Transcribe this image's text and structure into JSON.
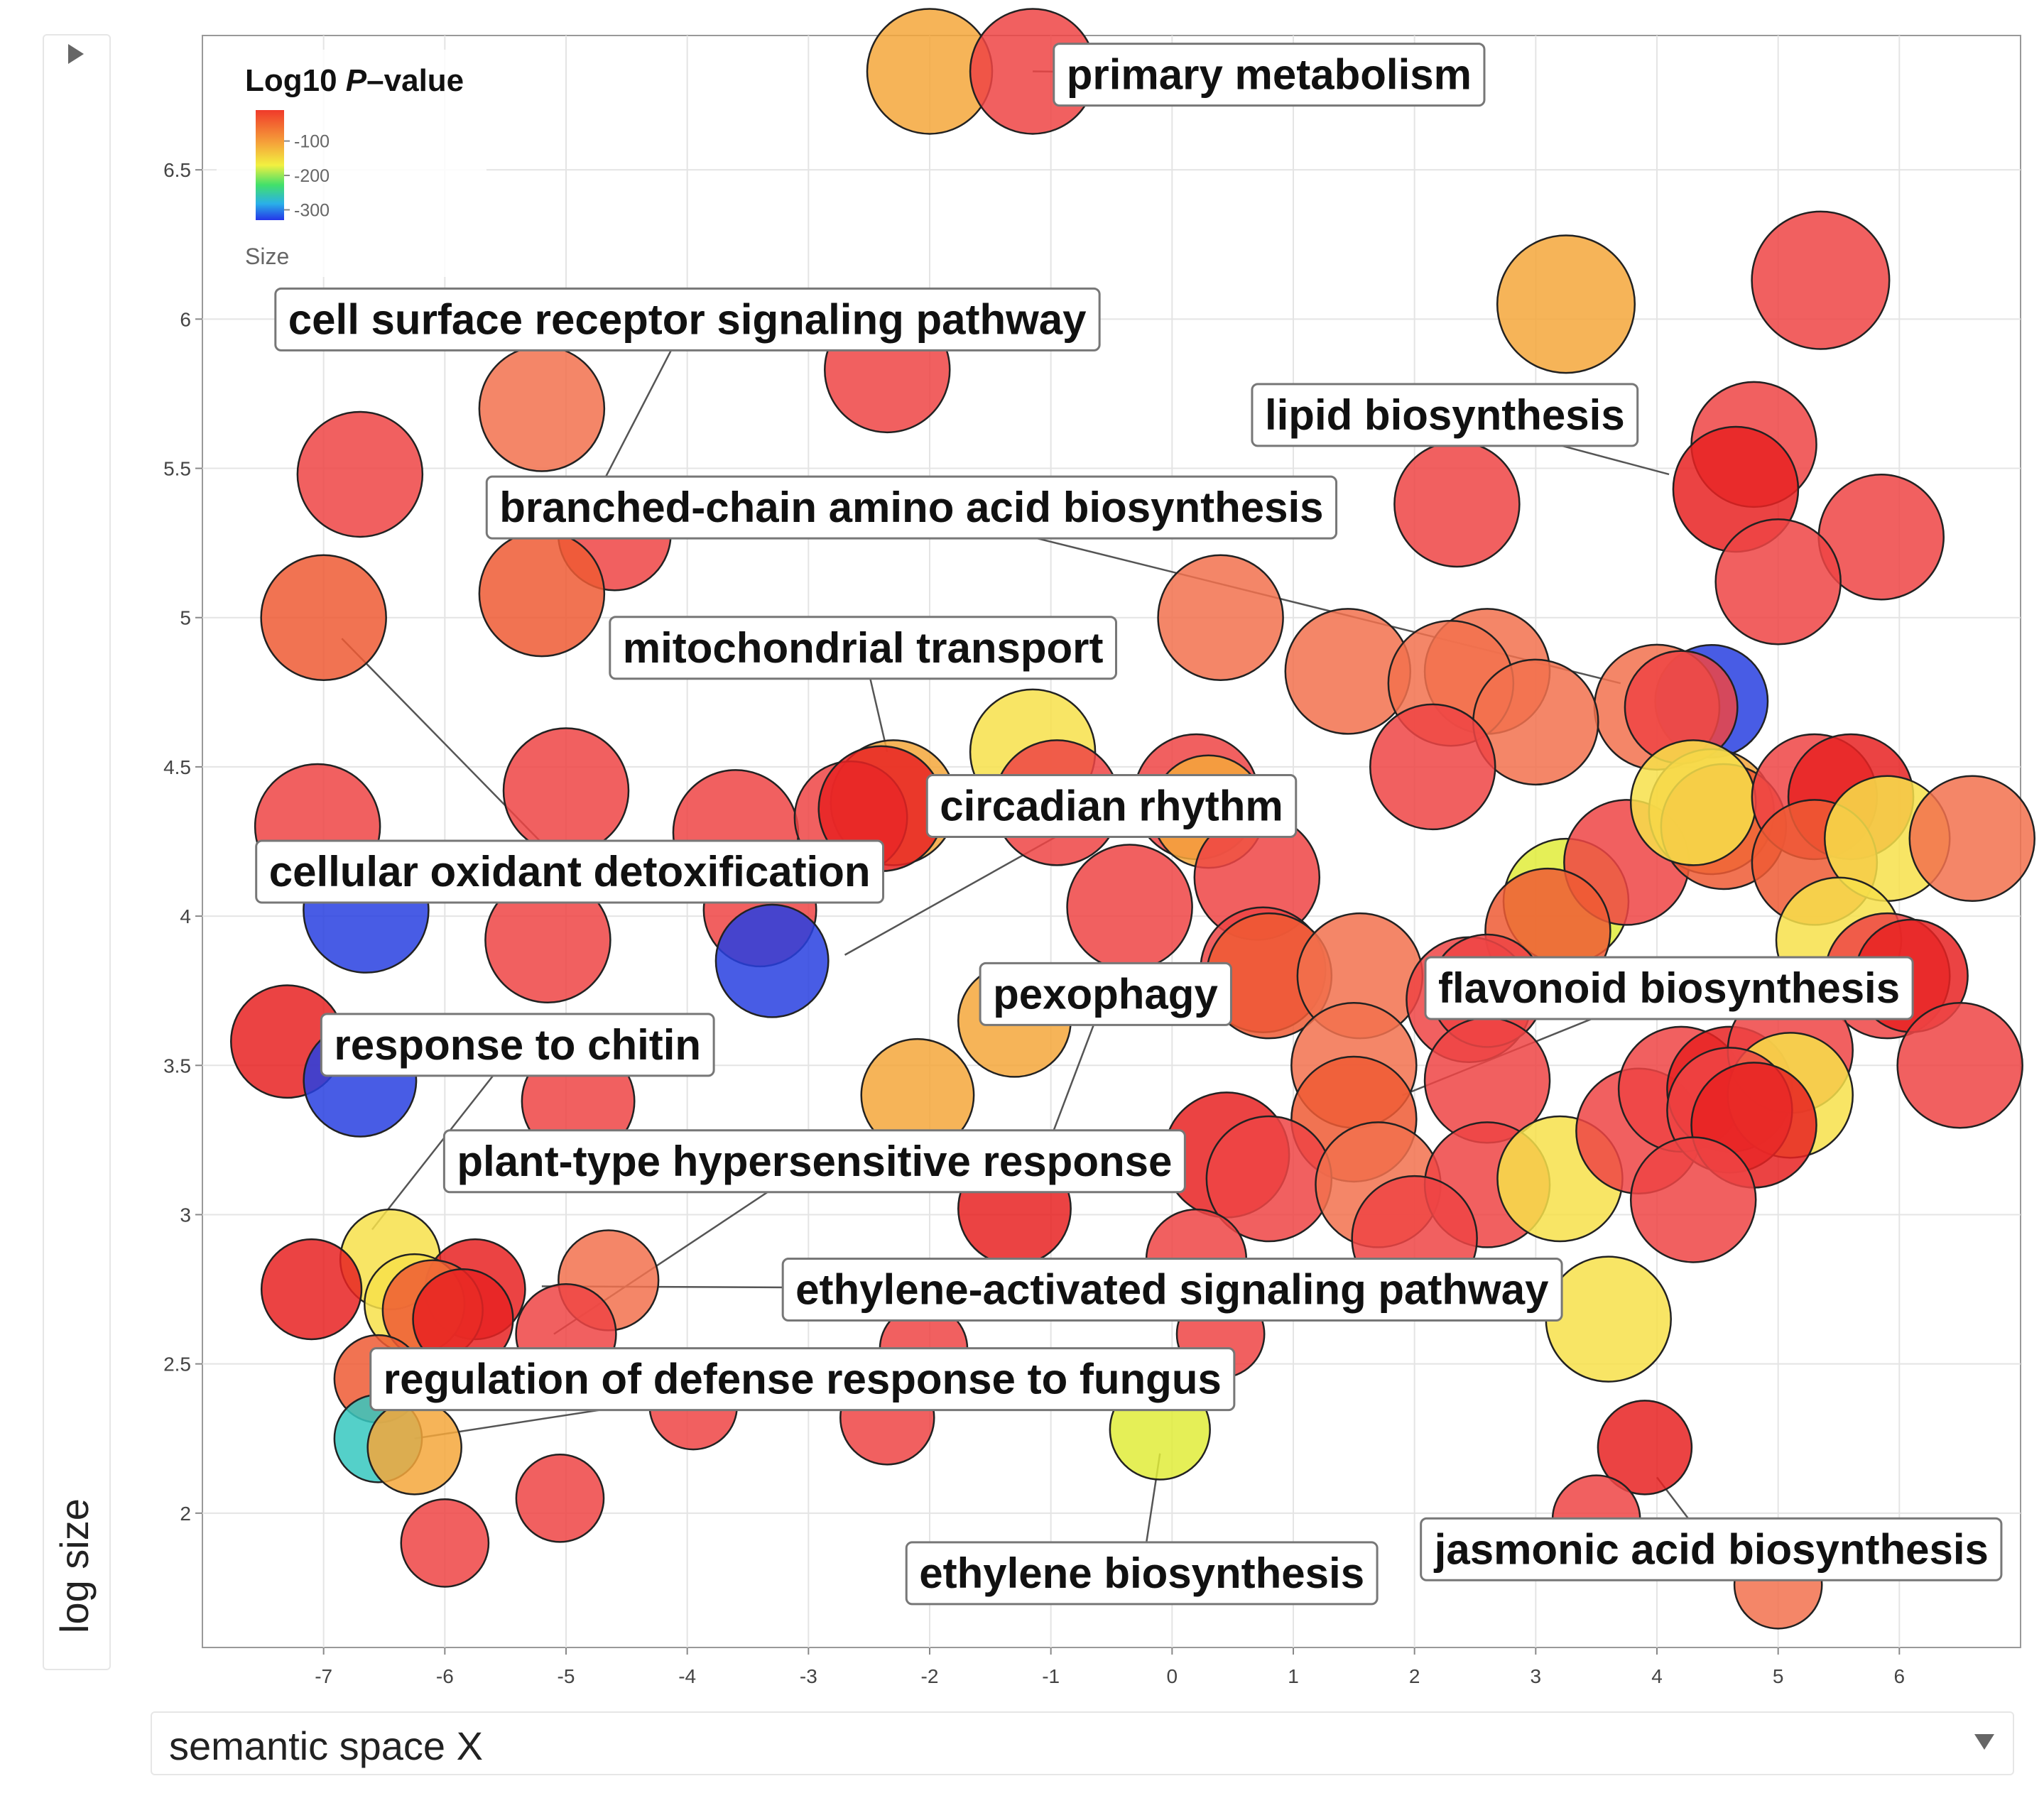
{
  "chart_data": {
    "type": "scatter",
    "title": "",
    "xlabel": "semantic space X",
    "ylabel": "log size",
    "xlim": [
      -8.0,
      7.0
    ],
    "ylim": [
      1.55,
      6.95
    ],
    "x_ticks": [
      -7,
      -6,
      -5,
      -4,
      -3,
      -2,
      -1,
      0,
      1,
      2,
      3,
      4,
      5,
      6
    ],
    "y_ticks": [
      2,
      2.5,
      3,
      3.5,
      4,
      4.5,
      5,
      5.5,
      6,
      6.5
    ],
    "x_tick_labels": [
      "-7",
      "-6",
      "-5",
      "-4",
      "-3",
      "-2",
      "-1",
      "0",
      "1",
      "2",
      "3",
      "4",
      "5",
      "6"
    ],
    "y_tick_labels": [
      "2",
      "2.5",
      "3",
      "3.5",
      "4",
      "4.5",
      "5",
      "5.5",
      "6",
      "6.5"
    ],
    "grid": true,
    "legend": {
      "title_prefix": "Log10 ",
      "title_italic": "P",
      "title_suffix": "–value",
      "ticks": [
        "-100",
        "-200",
        "-300"
      ],
      "tick_values": [
        -100,
        -200,
        -300
      ],
      "range": [
        -10,
        -330
      ],
      "size_label": "Size",
      "position": "top-left"
    },
    "colors": {
      "red": "#ee4444",
      "deep_red": "#e82222",
      "orange_red": "#ef5a34",
      "coral": "#f2714e",
      "orange": "#f5a73b",
      "yellow": "#f7e04a",
      "yellow_green": "#e0ec3a",
      "blue": "#2840e0",
      "teal": "#36c8c0"
    },
    "points": [
      {
        "x": -2.0,
        "y": 6.83,
        "size": 1.0,
        "color": "orange"
      },
      {
        "x": -1.15,
        "y": 6.83,
        "size": 1.0,
        "color": "red"
      },
      {
        "x": 3.25,
        "y": 6.05,
        "size": 1.1,
        "color": "orange"
      },
      {
        "x": 5.35,
        "y": 6.13,
        "size": 1.1,
        "color": "red"
      },
      {
        "x": -2.35,
        "y": 5.83,
        "size": 1.0,
        "color": "red"
      },
      {
        "x": -5.2,
        "y": 5.7,
        "size": 1.0,
        "color": "coral"
      },
      {
        "x": -6.7,
        "y": 5.48,
        "size": 1.0,
        "color": "red"
      },
      {
        "x": -4.6,
        "y": 5.28,
        "size": 0.9,
        "color": "red"
      },
      {
        "x": -5.2,
        "y": 5.08,
        "size": 1.0,
        "color": "orange_red"
      },
      {
        "x": -7.0,
        "y": 5.0,
        "size": 1.0,
        "color": "orange_red"
      },
      {
        "x": 2.35,
        "y": 5.38,
        "size": 1.0,
        "color": "red"
      },
      {
        "x": 4.8,
        "y": 5.58,
        "size": 1.0,
        "color": "red"
      },
      {
        "x": 4.65,
        "y": 5.43,
        "size": 1.0,
        "color": "deep_red"
      },
      {
        "x": 5.85,
        "y": 5.27,
        "size": 1.0,
        "color": "red"
      },
      {
        "x": 5.0,
        "y": 5.12,
        "size": 1.0,
        "color": "red"
      },
      {
        "x": 0.4,
        "y": 5.0,
        "size": 1.0,
        "color": "coral"
      },
      {
        "x": 1.45,
        "y": 4.82,
        "size": 1.0,
        "color": "coral"
      },
      {
        "x": 2.6,
        "y": 4.82,
        "size": 1.0,
        "color": "coral"
      },
      {
        "x": 2.3,
        "y": 4.78,
        "size": 1.0,
        "color": "coral"
      },
      {
        "x": 4.45,
        "y": 4.72,
        "size": 0.9,
        "color": "blue"
      },
      {
        "x": 4.0,
        "y": 4.7,
        "size": 1.0,
        "color": "coral"
      },
      {
        "x": 4.2,
        "y": 4.7,
        "size": 0.9,
        "color": "red"
      },
      {
        "x": 3.0,
        "y": 4.65,
        "size": 1.0,
        "color": "coral"
      },
      {
        "x": 2.15,
        "y": 4.5,
        "size": 1.0,
        "color": "red"
      },
      {
        "x": -1.15,
        "y": 4.55,
        "size": 1.0,
        "color": "yellow"
      },
      {
        "x": -5.0,
        "y": 4.42,
        "size": 1.0,
        "color": "red"
      },
      {
        "x": -7.05,
        "y": 4.3,
        "size": 1.0,
        "color": "red"
      },
      {
        "x": -3.6,
        "y": 4.28,
        "size": 1.0,
        "color": "red"
      },
      {
        "x": -2.3,
        "y": 4.38,
        "size": 1.0,
        "color": "orange"
      },
      {
        "x": -2.65,
        "y": 4.33,
        "size": 0.9,
        "color": "red"
      },
      {
        "x": -2.4,
        "y": 4.36,
        "size": 1.0,
        "color": "deep_red"
      },
      {
        "x": -0.95,
        "y": 4.38,
        "size": 1.0,
        "color": "red"
      },
      {
        "x": 0.2,
        "y": 4.4,
        "size": 1.0,
        "color": "red"
      },
      {
        "x": 0.3,
        "y": 4.35,
        "size": 0.9,
        "color": "orange"
      },
      {
        "x": 0.7,
        "y": 4.13,
        "size": 1.0,
        "color": "red"
      },
      {
        "x": -0.35,
        "y": 4.03,
        "size": 1.0,
        "color": "red"
      },
      {
        "x": -6.65,
        "y": 4.02,
        "size": 1.0,
        "color": "blue"
      },
      {
        "x": -5.15,
        "y": 3.92,
        "size": 1.0,
        "color": "red"
      },
      {
        "x": -3.4,
        "y": 4.02,
        "size": 0.9,
        "color": "red"
      },
      {
        "x": -3.3,
        "y": 3.85,
        "size": 0.9,
        "color": "blue"
      },
      {
        "x": 3.25,
        "y": 4.05,
        "size": 1.0,
        "color": "yellow_green"
      },
      {
        "x": 3.75,
        "y": 4.18,
        "size": 1.0,
        "color": "red"
      },
      {
        "x": 3.1,
        "y": 3.95,
        "size": 1.0,
        "color": "orange_red"
      },
      {
        "x": 4.45,
        "y": 4.35,
        "size": 1.0,
        "color": "orange"
      },
      {
        "x": 4.55,
        "y": 4.3,
        "size": 1.0,
        "color": "orange_red"
      },
      {
        "x": 4.3,
        "y": 4.38,
        "size": 1.0,
        "color": "yellow"
      },
      {
        "x": 5.3,
        "y": 4.4,
        "size": 1.0,
        "color": "red"
      },
      {
        "x": 5.6,
        "y": 4.4,
        "size": 1.0,
        "color": "deep_red"
      },
      {
        "x": 5.3,
        "y": 4.18,
        "size": 1.0,
        "color": "orange_red"
      },
      {
        "x": 5.9,
        "y": 4.26,
        "size": 1.0,
        "color": "yellow"
      },
      {
        "x": 6.6,
        "y": 4.26,
        "size": 1.0,
        "color": "coral"
      },
      {
        "x": 5.5,
        "y": 3.92,
        "size": 1.0,
        "color": "yellow"
      },
      {
        "x": 5.9,
        "y": 3.8,
        "size": 1.0,
        "color": "red"
      },
      {
        "x": 6.1,
        "y": 3.8,
        "size": 0.9,
        "color": "deep_red"
      },
      {
        "x": 6.5,
        "y": 3.5,
        "size": 1.0,
        "color": "red"
      },
      {
        "x": 0.75,
        "y": 3.82,
        "size": 1.0,
        "color": "red"
      },
      {
        "x": 0.8,
        "y": 3.8,
        "size": 1.0,
        "color": "orange_red"
      },
      {
        "x": 1.55,
        "y": 3.8,
        "size": 1.0,
        "color": "coral"
      },
      {
        "x": 2.45,
        "y": 3.72,
        "size": 1.0,
        "color": "red"
      },
      {
        "x": 2.6,
        "y": 3.75,
        "size": 0.9,
        "color": "red"
      },
      {
        "x": 1.5,
        "y": 3.5,
        "size": 1.0,
        "color": "coral"
      },
      {
        "x": 2.6,
        "y": 3.45,
        "size": 1.0,
        "color": "red"
      },
      {
        "x": 1.5,
        "y": 3.32,
        "size": 1.0,
        "color": "orange_red"
      },
      {
        "x": 0.45,
        "y": 3.2,
        "size": 1.0,
        "color": "deep_red"
      },
      {
        "x": 0.8,
        "y": 3.12,
        "size": 1.0,
        "color": "red"
      },
      {
        "x": 1.7,
        "y": 3.1,
        "size": 1.0,
        "color": "coral"
      },
      {
        "x": 2.6,
        "y": 3.1,
        "size": 1.0,
        "color": "red"
      },
      {
        "x": 3.2,
        "y": 3.12,
        "size": 1.0,
        "color": "yellow"
      },
      {
        "x": 3.85,
        "y": 3.28,
        "size": 1.0,
        "color": "red"
      },
      {
        "x": 4.2,
        "y": 3.42,
        "size": 1.0,
        "color": "red"
      },
      {
        "x": 4.6,
        "y": 3.42,
        "size": 1.0,
        "color": "deep_red"
      },
      {
        "x": 5.1,
        "y": 3.55,
        "size": 1.0,
        "color": "red"
      },
      {
        "x": 5.1,
        "y": 3.4,
        "size": 1.0,
        "color": "yellow"
      },
      {
        "x": 4.6,
        "y": 3.35,
        "size": 1.0,
        "color": "red"
      },
      {
        "x": 4.8,
        "y": 3.3,
        "size": 1.0,
        "color": "deep_red"
      },
      {
        "x": 4.3,
        "y": 3.05,
        "size": 1.0,
        "color": "red"
      },
      {
        "x": 2.0,
        "y": 2.92,
        "size": 1.0,
        "color": "red"
      },
      {
        "x": 3.6,
        "y": 2.65,
        "size": 1.0,
        "color": "yellow"
      },
      {
        "x": 0.2,
        "y": 2.85,
        "size": 0.8,
        "color": "red"
      },
      {
        "x": -1.3,
        "y": 3.65,
        "size": 0.9,
        "color": "orange"
      },
      {
        "x": -2.1,
        "y": 3.4,
        "size": 0.9,
        "color": "orange"
      },
      {
        "x": -1.3,
        "y": 3.02,
        "size": 0.9,
        "color": "deep_red"
      },
      {
        "x": -4.9,
        "y": 3.38,
        "size": 0.9,
        "color": "red"
      },
      {
        "x": -7.3,
        "y": 3.58,
        "size": 0.9,
        "color": "deep_red"
      },
      {
        "x": -6.7,
        "y": 3.45,
        "size": 0.9,
        "color": "blue"
      },
      {
        "x": -6.45,
        "y": 2.85,
        "size": 0.8,
        "color": "yellow"
      },
      {
        "x": -5.75,
        "y": 2.75,
        "size": 0.8,
        "color": "deep_red"
      },
      {
        "x": -7.1,
        "y": 2.75,
        "size": 0.8,
        "color": "deep_red"
      },
      {
        "x": -6.25,
        "y": 2.7,
        "size": 0.8,
        "color": "yellow"
      },
      {
        "x": -6.1,
        "y": 2.68,
        "size": 0.8,
        "color": "orange_red"
      },
      {
        "x": -5.85,
        "y": 2.65,
        "size": 0.8,
        "color": "deep_red"
      },
      {
        "x": -4.65,
        "y": 2.78,
        "size": 0.8,
        "color": "coral"
      },
      {
        "x": -5.0,
        "y": 2.6,
        "size": 0.8,
        "color": "red"
      },
      {
        "x": -6.55,
        "y": 2.45,
        "size": 0.7,
        "color": "orange_red"
      },
      {
        "x": -6.55,
        "y": 2.25,
        "size": 0.7,
        "color": "teal"
      },
      {
        "x": -6.25,
        "y": 2.22,
        "size": 0.75,
        "color": "orange"
      },
      {
        "x": -3.95,
        "y": 2.36,
        "size": 0.7,
        "color": "red"
      },
      {
        "x": -2.35,
        "y": 2.32,
        "size": 0.75,
        "color": "red"
      },
      {
        "x": -2.05,
        "y": 2.55,
        "size": 0.7,
        "color": "red"
      },
      {
        "x": -0.1,
        "y": 2.28,
        "size": 0.8,
        "color": "yellow_green"
      },
      {
        "x": 0.4,
        "y": 2.6,
        "size": 0.7,
        "color": "red"
      },
      {
        "x": -5.05,
        "y": 2.05,
        "size": 0.7,
        "color": "red"
      },
      {
        "x": -6.0,
        "y": 1.9,
        "size": 0.7,
        "color": "red"
      },
      {
        "x": 3.9,
        "y": 2.22,
        "size": 0.75,
        "color": "deep_red"
      },
      {
        "x": 3.5,
        "y": 1.98,
        "size": 0.7,
        "color": "red"
      },
      {
        "x": 5.0,
        "y": 1.76,
        "size": 0.7,
        "color": "coral"
      }
    ],
    "labels": [
      {
        "text": "primary metabolism",
        "x": 0.8,
        "y": 6.82,
        "anchor_x": -1.15,
        "anchor_y": 6.83
      },
      {
        "text": "cell surface receptor signaling pathway",
        "x": -4.0,
        "y": 6.0,
        "anchor_x": -4.7,
        "anchor_y": 5.45
      },
      {
        "text": "lipid biosynthesis",
        "x": 2.25,
        "y": 5.68,
        "anchor_x": 4.1,
        "anchor_y": 5.48
      },
      {
        "text": "branched-chain amino acid biosynthesis",
        "x": -2.15,
        "y": 5.37,
        "anchor_x": 3.7,
        "anchor_y": 4.78
      },
      {
        "text": "mitochondrial transport",
        "x": -2.55,
        "y": 4.9,
        "anchor_x": -2.35,
        "anchor_y": 4.55
      },
      {
        "text": "circadian rhythm",
        "x": -0.5,
        "y": 4.37,
        "anchor_x": -2.7,
        "anchor_y": 3.87
      },
      {
        "text": "cellular oxidant detoxification",
        "x": -4.97,
        "y": 4.15,
        "anchor_x": -6.85,
        "anchor_y": 4.93
      },
      {
        "text": "pexophagy",
        "x": -0.55,
        "y": 3.74,
        "anchor_x": -1.1,
        "anchor_y": 3.15
      },
      {
        "text": "flavonoid biosynthesis",
        "x": 4.1,
        "y": 3.76,
        "anchor_x": 1.9,
        "anchor_y": 3.4
      },
      {
        "text": "response to chitin",
        "x": -5.4,
        "y": 3.57,
        "anchor_x": -6.6,
        "anchor_y": 2.95
      },
      {
        "text": "plant-type hypersensitive response",
        "x": -2.95,
        "y": 3.18,
        "anchor_x": -5.1,
        "anchor_y": 2.6
      },
      {
        "text": "ethylene-activated signaling pathway",
        "x": 0.0,
        "y": 2.75,
        "anchor_x": -5.2,
        "anchor_y": 2.76
      },
      {
        "text": "regulation of defense response to fungus",
        "x": -3.05,
        "y": 2.45,
        "anchor_x": -6.25,
        "anchor_y": 2.25
      },
      {
        "text": "ethylene biosynthesis",
        "x": -0.25,
        "y": 1.8,
        "anchor_x": -0.1,
        "anchor_y": 2.2
      },
      {
        "text": "jasmonic acid biosynthesis",
        "x": 4.45,
        "y": 1.88,
        "anchor_x": 4.0,
        "anchor_y": 2.12
      }
    ]
  },
  "ui": {
    "xlabel_select": "semantic space X",
    "ylabel_select": "log size"
  }
}
